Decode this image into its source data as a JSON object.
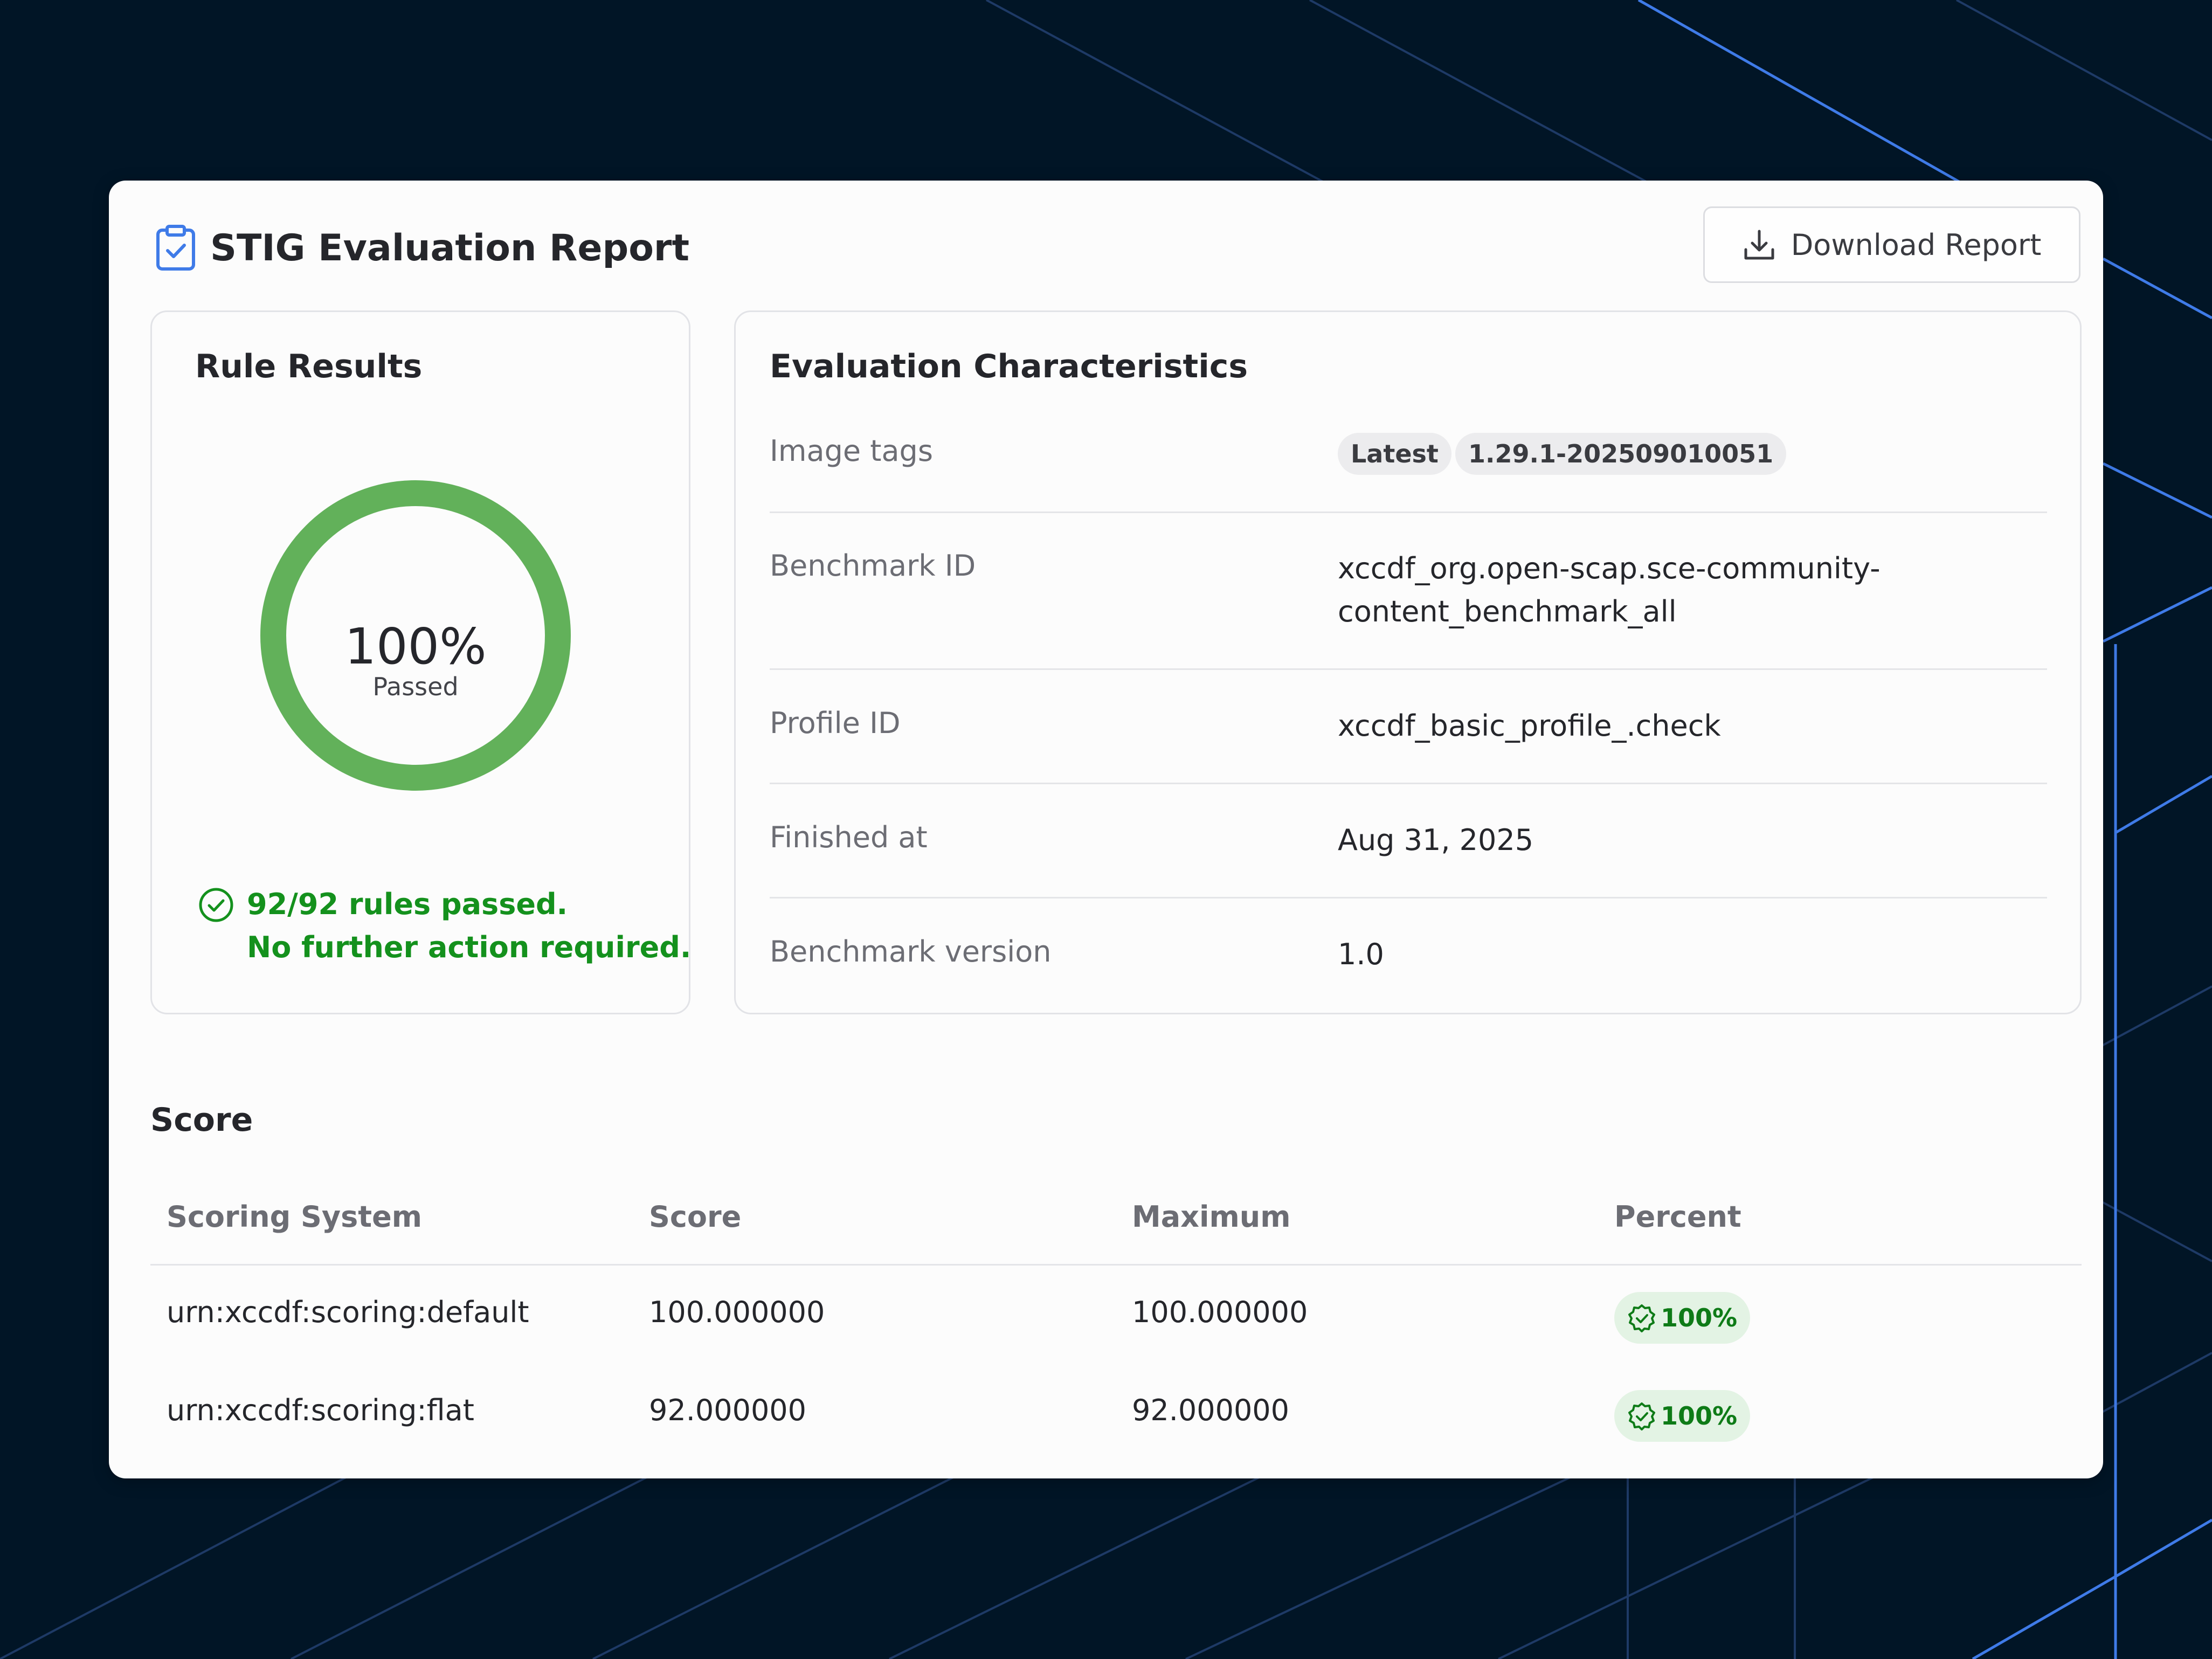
{
  "header": {
    "title": "STIG Evaluation Report",
    "download_label": "Download Report"
  },
  "rule_results": {
    "title": "Rule Results",
    "percent_text": "100%",
    "percent_value": 100,
    "status_label": "Passed",
    "summary_line1": "92/92 rules passed.",
    "summary_line2": "No further action required.",
    "ring_color": "#62b15a"
  },
  "evaluation": {
    "title": "Evaluation Characteristics",
    "image_tags_label": "Image tags",
    "image_tags": [
      "Latest",
      "1.29.1-202509010051"
    ],
    "benchmark_id_label": "Benchmark ID",
    "benchmark_id_line1": "xccdf_org.open-scap.sce-community-",
    "benchmark_id_line2": "content_benchmark_all",
    "profile_id_label": "Profile ID",
    "profile_id": "xccdf_basic_profile_.check",
    "finished_label": "Finished at",
    "finished_at": "Aug 31, 2025",
    "version_label": "Benchmark version",
    "version": "1.0"
  },
  "score": {
    "title": "Score",
    "columns": [
      "Scoring System",
      "Score",
      "Maximum",
      "Percent"
    ],
    "rows": [
      {
        "system": "urn:xccdf:scoring:default",
        "score": "100.000000",
        "maximum": "100.000000",
        "percent": "100%"
      },
      {
        "system": "urn:xccdf:scoring:flat",
        "score": "92.000000",
        "maximum": "92.000000",
        "percent": "100%"
      }
    ]
  },
  "colors": {
    "accent_blue": "#3f7be8",
    "pass_green": "#14911d",
    "background": "#011526"
  }
}
